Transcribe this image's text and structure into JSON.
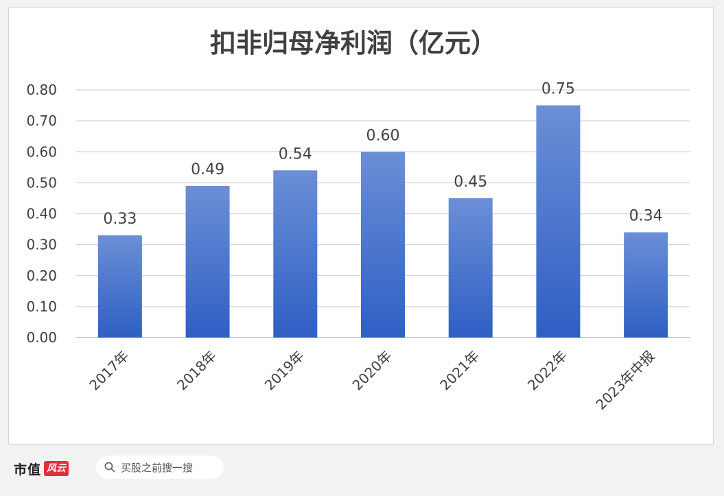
{
  "colors": {
    "bar_top": "#6b8fd6",
    "bar_bottom": "#2f5fc4",
    "text": "#404040",
    "grid": "#d9d9d9",
    "axis": "#bfbfbf",
    "brand_red": "#e0303a"
  },
  "chart_data": {
    "type": "bar",
    "title": "扣非归母净利润（亿元）",
    "categories": [
      "2017年",
      "2018年",
      "2019年",
      "2020年",
      "2021年",
      "2022年",
      "2023年中报"
    ],
    "values": [
      0.33,
      0.49,
      0.54,
      0.6,
      0.45,
      0.75,
      0.34
    ],
    "value_labels": [
      "0.33",
      "0.49",
      "0.54",
      "0.60",
      "0.45",
      "0.75",
      "0.34"
    ],
    "yticks": [
      "0.00",
      "0.10",
      "0.20",
      "0.30",
      "0.40",
      "0.50",
      "0.60",
      "0.70",
      "0.80"
    ],
    "ylim": [
      0,
      0.8
    ],
    "grid": true,
    "legend": "none"
  },
  "footer": {
    "brand_text": "市值",
    "brand_badge": "风云",
    "search_icon": "search-icon",
    "search_text": "买股之前搜一搜"
  }
}
